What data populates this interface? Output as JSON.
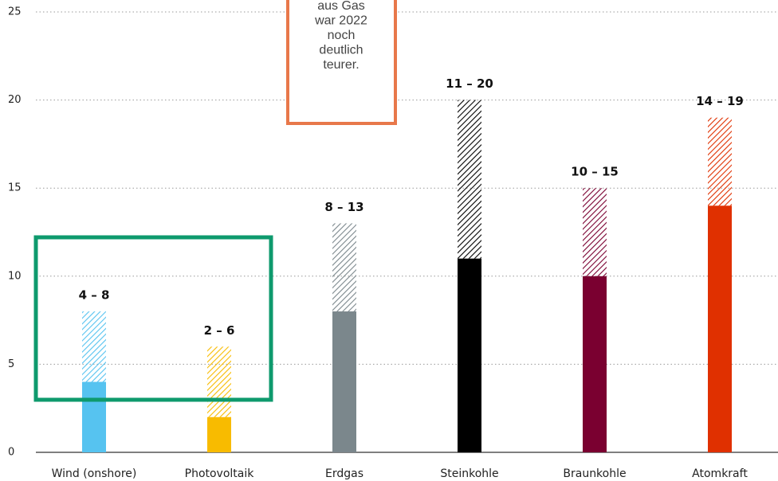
{
  "chart_data": {
    "type": "range_bar",
    "categories": [
      "Wind (onshore)",
      "Photovoltaik",
      "Erdgas",
      "Steinkohle",
      "Braunkohle",
      "Atomkraft"
    ],
    "low": [
      4,
      2,
      8,
      11,
      10,
      14
    ],
    "high": [
      8,
      6,
      13,
      20,
      15,
      19
    ],
    "value_labels": [
      "4 – 8",
      "2 – 6",
      "8 – 13",
      "11 – 20",
      "10 – 15",
      "14 – 19"
    ],
    "colors": [
      "#56c3f0",
      "#f8bb00",
      "#7b878c",
      "#000000",
      "#7a0030",
      "#e03000"
    ],
    "ylim": [
      0,
      25
    ],
    "yticks": [
      0,
      5,
      10,
      15,
      20,
      25
    ],
    "grid": true,
    "annotation": [
      "aus Gas",
      "war 2022",
      "noch",
      "deutlich",
      "teurer."
    ]
  }
}
